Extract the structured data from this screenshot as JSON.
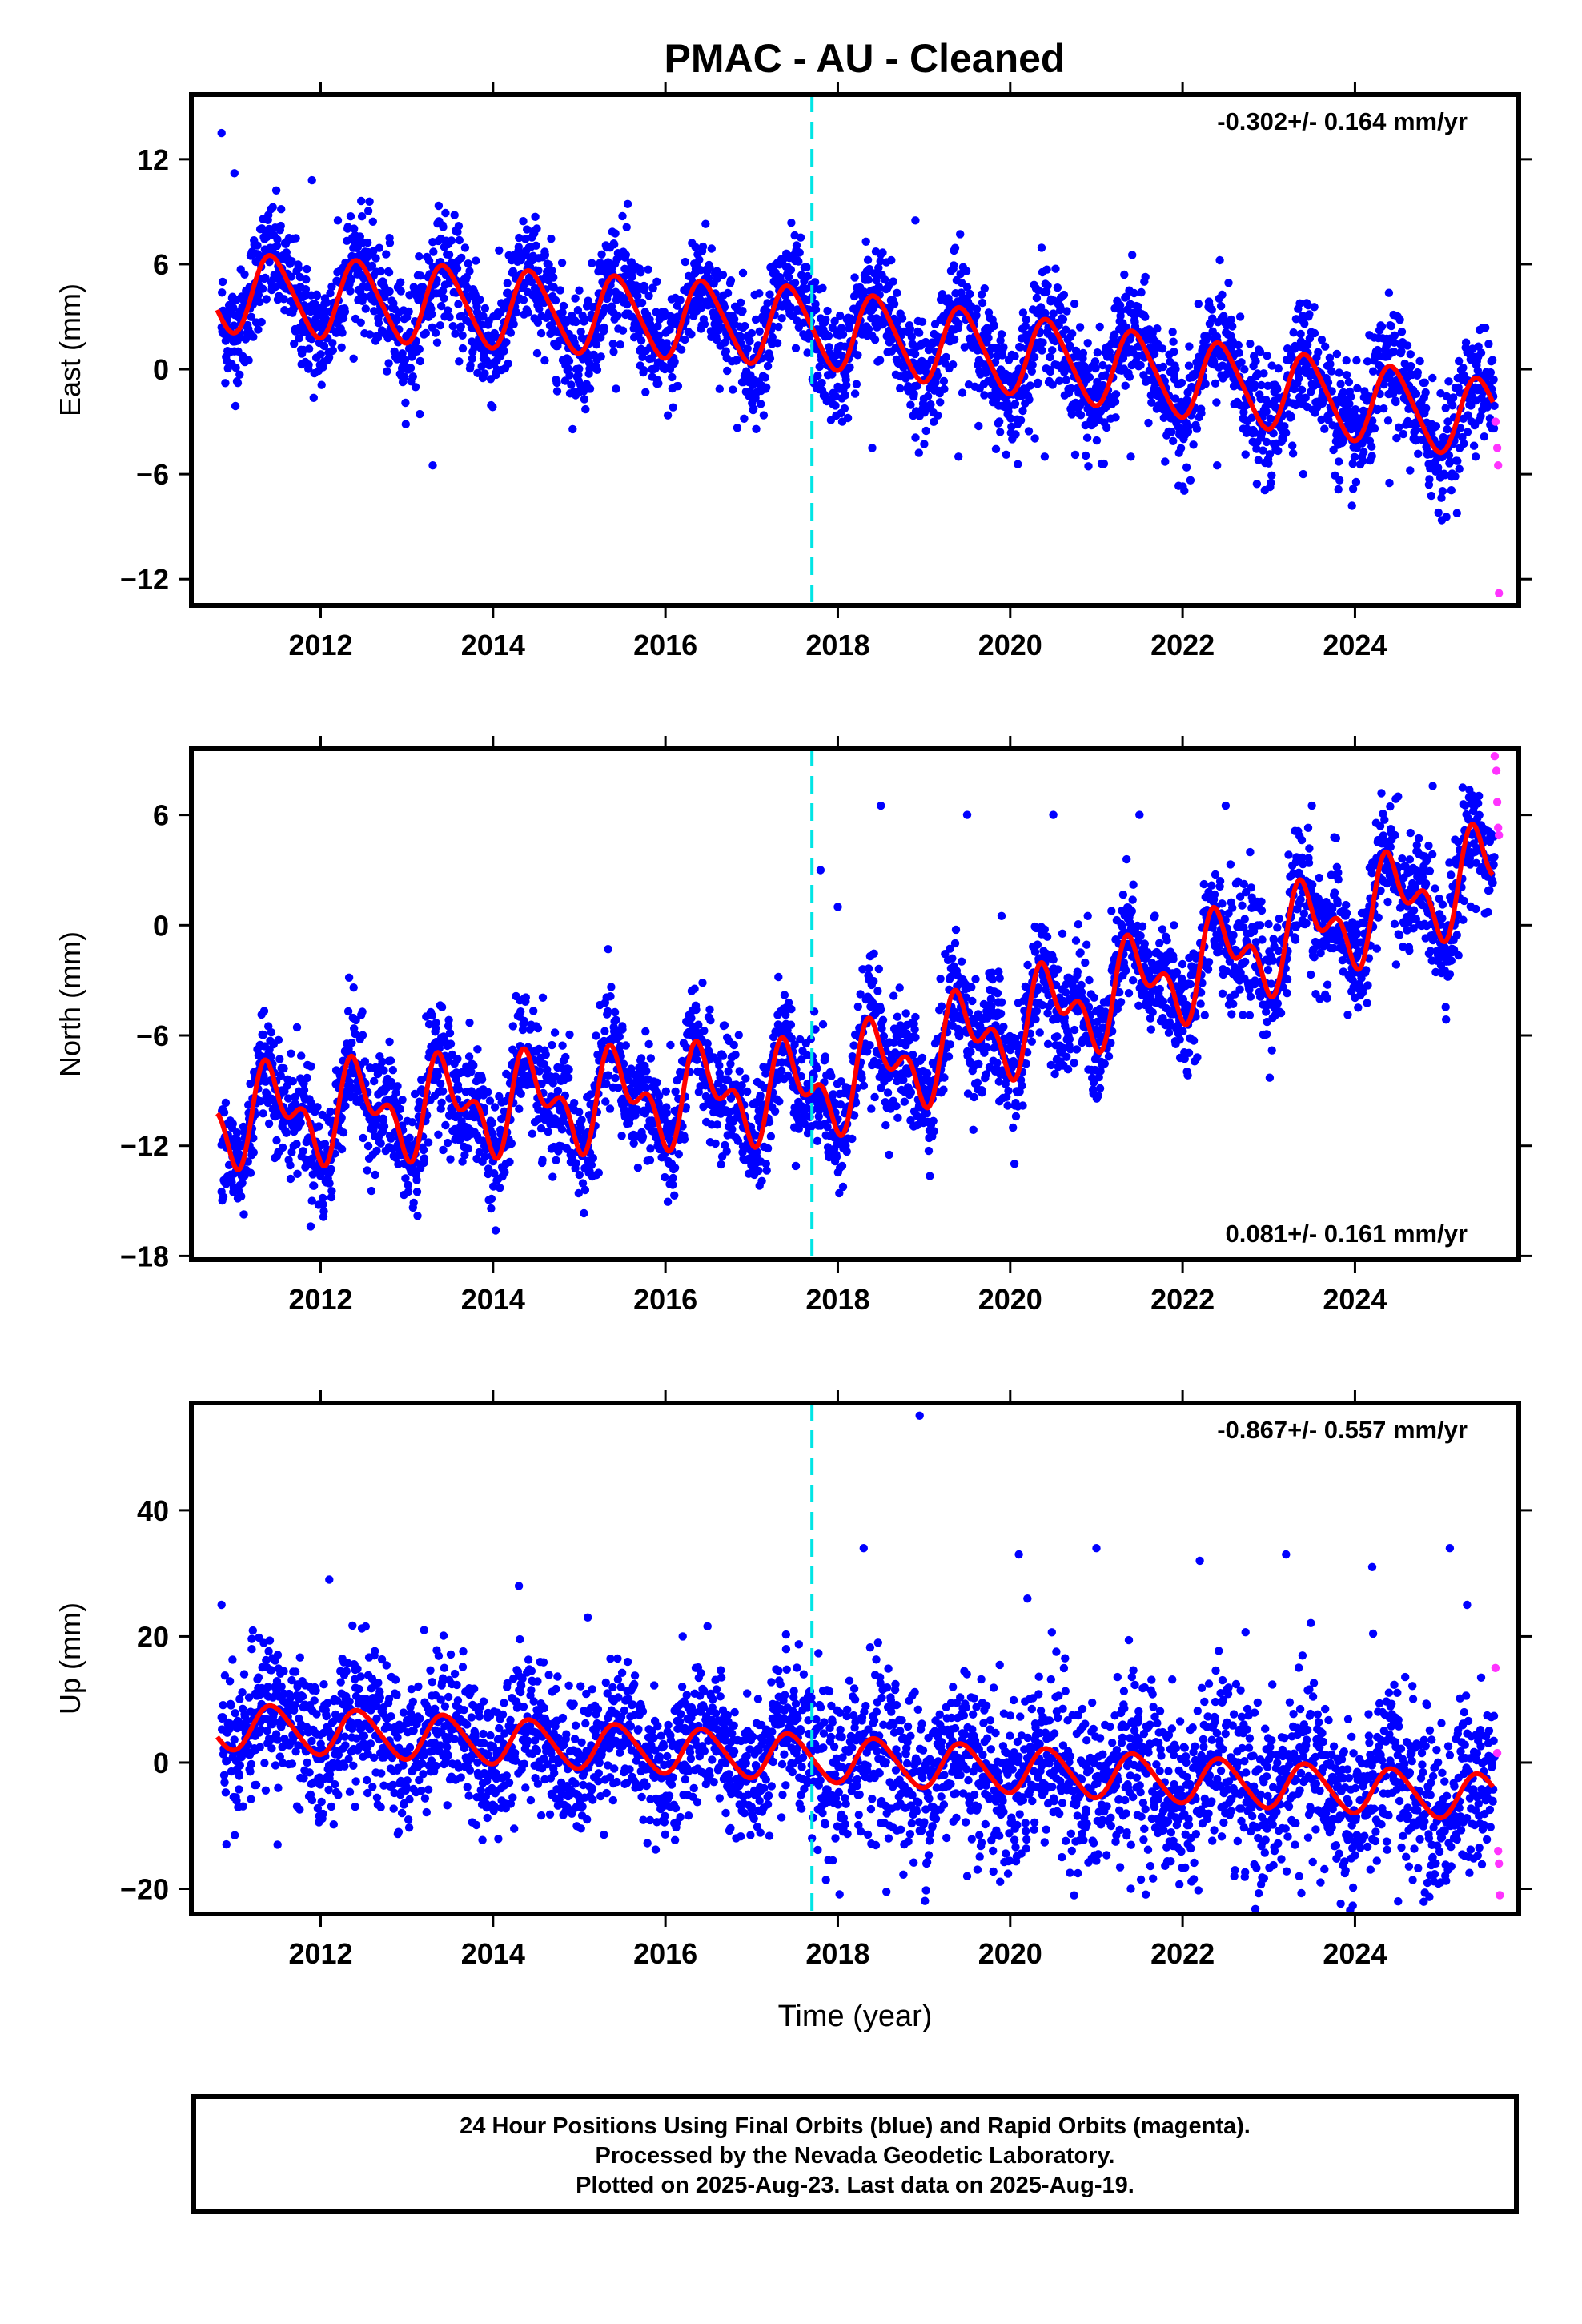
{
  "title": "PMAC  - AU - Cleaned",
  "colors": {
    "final_orbits": "#0000ff",
    "rapid_orbits": "#ff33ff",
    "model_fit": "#ff0000",
    "offset_line": "#00e5e5"
  },
  "footer": {
    "line1": "24 Hour Positions Using Final Orbits (blue) and Rapid Orbits (magenta).",
    "line2": "Processed by the Nevada Geodetic Laboratory.",
    "line3": "Plotted on 2025-Aug-23. Last data on 2025-Aug-19."
  },
  "chart_data": [
    {
      "type": "scatter",
      "panel": "east",
      "ylabel": "East (mm)",
      "xlabel": "",
      "rate": "-0.302+/- 0.164 mm/yr",
      "xlim": [
        2010.5,
        2025.9
      ],
      "ylim": [
        -13.5,
        15.7
      ],
      "xticks": [
        2012,
        2014,
        2016,
        2018,
        2020,
        2022,
        2024
      ],
      "yticks": [
        -12,
        -6,
        0,
        6,
        12
      ],
      "offset_epoch": 2017.7,
      "model": {
        "type": "trend_plus_annual",
        "x": [
          2010.8,
          2017.7,
          2025.6
        ],
        "trend": [
          4.4,
          2.4,
          -2.9
        ],
        "annual_amplitude": 2.2,
        "semiannual_amplitude": 0.3,
        "step_at_offset": 0
      },
      "scatter_sample": [
        [
          2010.85,
          13.5
        ],
        [
          2011.0,
          11.2
        ],
        [
          2011.3,
          8.0
        ],
        [
          2011.6,
          6.5
        ],
        [
          2011.9,
          10.8
        ],
        [
          2012.2,
          8.5
        ],
        [
          2012.5,
          5.2
        ],
        [
          2012.8,
          7.5
        ],
        [
          2013.1,
          1.0
        ],
        [
          2013.3,
          -5.5
        ],
        [
          2013.8,
          6.2
        ],
        [
          2014.2,
          2.5
        ],
        [
          2014.6,
          0.5
        ],
        [
          2015.0,
          4.5
        ],
        [
          2015.4,
          1.0
        ],
        [
          2015.9,
          5.0
        ],
        [
          2016.3,
          2.0
        ],
        [
          2016.9,
          5.5
        ],
        [
          2017.3,
          1.5
        ],
        [
          2017.6,
          2.0
        ],
        [
          2018.0,
          -1.0
        ],
        [
          2018.4,
          -4.5
        ],
        [
          2018.9,
          8.5
        ],
        [
          2019.0,
          1.5
        ],
        [
          2019.4,
          -5.0
        ],
        [
          2019.9,
          2.0
        ],
        [
          2020.4,
          -5.0
        ],
        [
          2020.9,
          1.5
        ],
        [
          2021.4,
          -5.0
        ],
        [
          2021.9,
          1.0
        ],
        [
          2022.4,
          -5.5
        ],
        [
          2022.9,
          1.0
        ],
        [
          2023.4,
          -6.0
        ],
        [
          2023.9,
          0.5
        ],
        [
          2024.4,
          -6.5
        ],
        [
          2024.9,
          -0.5
        ],
        [
          2025.4,
          -5.0
        ]
      ],
      "rapid_sample": [
        [
          2025.63,
          -3.0
        ],
        [
          2025.65,
          -4.5
        ],
        [
          2025.66,
          -5.5
        ],
        [
          2025.67,
          -12.8
        ]
      ]
    },
    {
      "type": "scatter",
      "panel": "north",
      "ylabel": "North (mm)",
      "xlabel": "",
      "rate": "0.081+/- 0.161 mm/yr",
      "xlim": [
        2010.5,
        2025.9
      ],
      "ylim": [
        -18.2,
        9.6
      ],
      "xticks": [
        2012,
        2014,
        2016,
        2018,
        2020,
        2022,
        2024
      ],
      "yticks": [
        -18,
        -12,
        -6,
        0,
        6
      ],
      "offset_epoch": 2017.7,
      "model": {
        "type": "trend_plus_annual",
        "x": [
          2010.8,
          2017.7,
          2025.6
        ],
        "trend": [
          -10.4,
          -9.0,
          2.9
        ],
        "annual_amplitude": 2.0,
        "semiannual_amplitude": 1.4,
        "step_at_offset": 12.0
      },
      "scatter_sample": [
        [
          2010.85,
          -14.5
        ],
        [
          2011.2,
          -12.5
        ],
        [
          2011.5,
          -9.5
        ],
        [
          2011.9,
          -15.0
        ],
        [
          2012.2,
          -12.0
        ],
        [
          2012.5,
          -8.5
        ],
        [
          2012.9,
          -13.0
        ],
        [
          2013.5,
          -6.5
        ],
        [
          2013.9,
          -12.0
        ],
        [
          2014.5,
          -5.5
        ],
        [
          2014.9,
          -12.5
        ],
        [
          2015.5,
          -5.5
        ],
        [
          2015.9,
          -11.5
        ],
        [
          2016.5,
          -5.0
        ],
        [
          2016.9,
          -11.0
        ],
        [
          2017.5,
          -6.5
        ],
        [
          2017.68,
          -9.0
        ],
        [
          2017.8,
          3.0
        ],
        [
          2018.0,
          1.0
        ],
        [
          2018.5,
          6.5
        ],
        [
          2018.9,
          -5.0
        ],
        [
          2019.1,
          -7.5
        ],
        [
          2019.5,
          6.0
        ],
        [
          2019.9,
          0.5
        ],
        [
          2020.5,
          6.0
        ],
        [
          2020.9,
          0.5
        ],
        [
          2021.5,
          6.0
        ],
        [
          2021.9,
          0.0
        ],
        [
          2022.5,
          6.5
        ],
        [
          2022.9,
          0.0
        ],
        [
          2023.5,
          6.5
        ],
        [
          2023.9,
          0.0
        ],
        [
          2024.5,
          7.0
        ],
        [
          2024.9,
          0.5
        ],
        [
          2025.4,
          4.0
        ]
      ],
      "rapid_sample": [
        [
          2025.62,
          9.2
        ],
        [
          2025.64,
          8.4
        ],
        [
          2025.65,
          6.7
        ],
        [
          2025.66,
          5.3
        ],
        [
          2025.67,
          4.9
        ]
      ]
    },
    {
      "type": "scatter",
      "panel": "up",
      "ylabel": "Up (mm)",
      "xlabel": "Time (year)",
      "rate": "-0.867+/- 0.557 mm/yr",
      "xlim": [
        2010.5,
        2025.9
      ],
      "ylim": [
        -24,
        57
      ],
      "xticks": [
        2012,
        2014,
        2016,
        2018,
        2020,
        2022,
        2024
      ],
      "yticks": [
        -20,
        0,
        20,
        40
      ],
      "offset_epoch": 2017.7,
      "model": {
        "type": "trend_plus_annual",
        "x": [
          2010.8,
          2017.7,
          2025.6
        ],
        "trend": [
          5.8,
          0.7,
          -5.6
        ],
        "annual_amplitude": 3.6,
        "semiannual_amplitude": 0.4,
        "step_at_offset": 0
      },
      "scatter_sample": [
        [
          2010.85,
          25.0
        ],
        [
          2011.2,
          18.0
        ],
        [
          2011.5,
          -13.0
        ],
        [
          2012.1,
          29.0
        ],
        [
          2012.4,
          -7.0
        ],
        [
          2013.2,
          21.0
        ],
        [
          2014.3,
          28.0
        ],
        [
          2014.8,
          -5.0
        ],
        [
          2015.1,
          23.0
        ],
        [
          2016.2,
          20.0
        ],
        [
          2016.7,
          -8.0
        ],
        [
          2017.4,
          18.0
        ],
        [
          2017.7,
          -12.0
        ],
        [
          2018.3,
          34.0
        ],
        [
          2018.6,
          -10.0
        ],
        [
          2018.95,
          55.0
        ],
        [
          2019.5,
          -18.0
        ],
        [
          2020.1,
          33.0
        ],
        [
          2020.2,
          26.0
        ],
        [
          2020.6,
          -15.0
        ],
        [
          2021.0,
          34.0
        ],
        [
          2021.4,
          -20.0
        ],
        [
          2022.2,
          32.0
        ],
        [
          2022.6,
          -18.0
        ],
        [
          2023.2,
          33.0
        ],
        [
          2023.6,
          -19.0
        ],
        [
          2024.2,
          31.0
        ],
        [
          2024.5,
          -22.0
        ],
        [
          2025.1,
          34.0
        ],
        [
          2025.3,
          25.0
        ]
      ],
      "rapid_sample": [
        [
          2025.63,
          15.0
        ],
        [
          2025.65,
          1.5
        ],
        [
          2025.66,
          -14.0
        ],
        [
          2025.67,
          -16.0
        ],
        [
          2025.68,
          -21.0
        ]
      ]
    }
  ]
}
